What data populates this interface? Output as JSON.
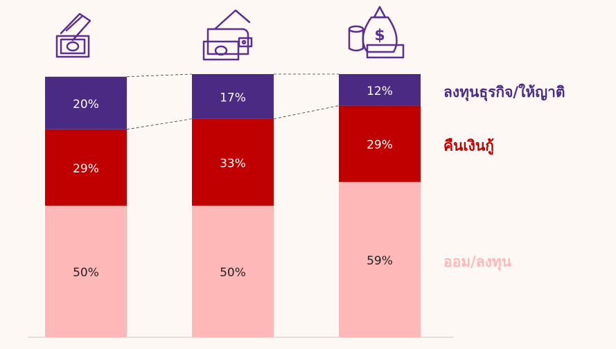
{
  "chart_data": {
    "type": "stacked_bar",
    "categories": [
      null,
      null,
      null
    ],
    "series": [
      {
        "name": "ออม/ลงทุน",
        "color": "#ffb8b8",
        "values": [
          50,
          50,
          59
        ],
        "value_labels": [
          "50%",
          "50%",
          "59%"
        ]
      },
      {
        "name": "คืนเงินกู้",
        "color": "#c00000",
        "values": [
          29,
          33,
          29
        ],
        "value_labels": [
          "29%",
          "33%",
          "29%"
        ]
      },
      {
        "name": "ลงทุนธุรกิจ/ให้ญาติ",
        "color": "#4b2a84",
        "values": [
          20,
          17,
          12
        ],
        "value_labels": [
          "20%",
          "17%",
          "12%"
        ]
      }
    ],
    "ylim": [
      0,
      100
    ]
  }
}
